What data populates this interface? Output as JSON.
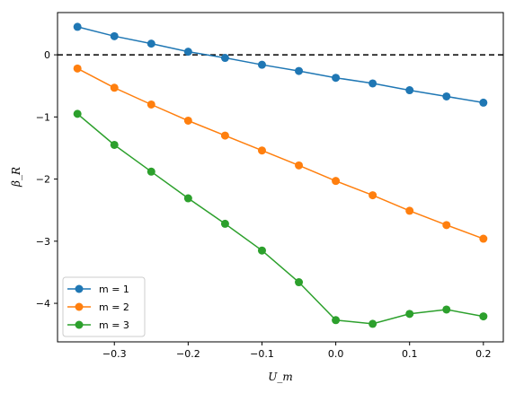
{
  "chart_data": {
    "type": "line",
    "title": "",
    "xlabel": "U_m",
    "ylabel": "β_R",
    "xlim": [
      -0.377,
      0.227
    ],
    "ylim": [
      -4.62,
      0.68
    ],
    "x_ticks": [
      -0.3,
      -0.2,
      -0.1,
      0.0,
      0.1,
      0.2
    ],
    "x_tick_labels": [
      "−0.3",
      "−0.2",
      "−0.1",
      "0.0",
      "0.1",
      "0.2"
    ],
    "y_ticks": [
      0,
      -1,
      -2,
      -3,
      -4
    ],
    "y_tick_labels": [
      "0",
      "−1",
      "−2",
      "−3",
      "−4"
    ],
    "reference_line": {
      "y": 0,
      "style": "dashed",
      "color": "#000000"
    },
    "grid": false,
    "legend_position": "lower-left",
    "x": [
      -0.35,
      -0.3,
      -0.25,
      -0.2,
      -0.15,
      -0.1,
      -0.05,
      0.0,
      0.05,
      0.1,
      0.15,
      0.2
    ],
    "series": [
      {
        "name": "m = 1",
        "color": "#1f77b4",
        "values": [
          0.45,
          0.3,
          0.18,
          0.05,
          -0.05,
          -0.16,
          -0.26,
          -0.37,
          -0.46,
          -0.57,
          -0.67,
          -0.77
        ]
      },
      {
        "name": "m = 2",
        "color": "#ff7f0e",
        "values": [
          -0.22,
          -0.53,
          -0.8,
          -1.06,
          -1.3,
          -1.54,
          -1.78,
          -2.03,
          -2.26,
          -2.51,
          -2.74,
          -2.96
        ]
      },
      {
        "name": "m = 3",
        "color": "#2ca02c",
        "values": [
          -0.95,
          -1.45,
          -1.88,
          -2.31,
          -2.72,
          -3.15,
          -3.66,
          -4.27,
          -4.33,
          -4.17,
          -4.1,
          -4.21
        ]
      }
    ]
  }
}
